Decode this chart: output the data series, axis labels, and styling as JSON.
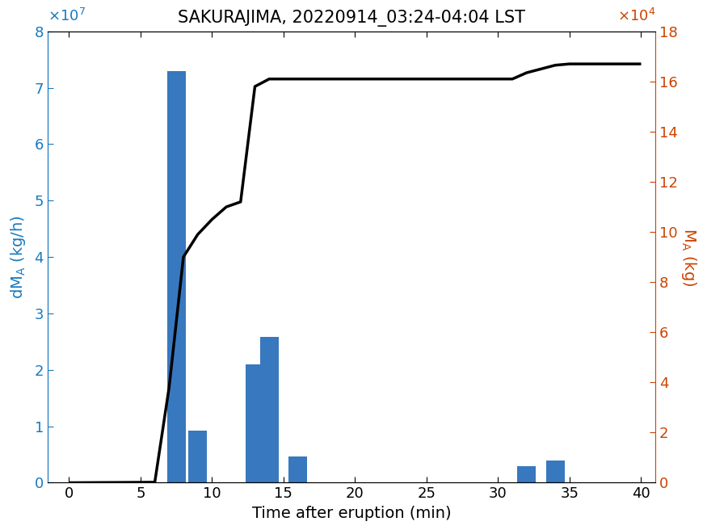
{
  "title": "SAKURAJIMA, 20220914_03:24-04:04 LST",
  "xlabel": "Time after eruption (min)",
  "bar_positions": [
    7.5,
    9,
    13,
    14,
    16,
    32,
    34
  ],
  "bar_heights": [
    73000000.0,
    9200000.0,
    21000000.0,
    25800000.0,
    4600000.0,
    3000000.0,
    4000000.0
  ],
  "bar_width": 1.3,
  "bar_color": "#3878be",
  "line_x": [
    0,
    6.0,
    7.0,
    8.0,
    9.0,
    10.0,
    11.0,
    12.0,
    13.0,
    14.0,
    15.0,
    16.0,
    17.0,
    18.0,
    25.0,
    30.0,
    31.0,
    32.0,
    33.0,
    34.0,
    35.0,
    38.0,
    40.0
  ],
  "line_y": [
    0,
    200.0,
    38000.0,
    90000.0,
    99000.0,
    105000.0,
    110000.0,
    112000.0,
    158000.0,
    161000.0,
    161000.0,
    161000.0,
    161000.0,
    161000.0,
    161000.0,
    161000.0,
    161000.0,
    163500.0,
    165000.0,
    166500.0,
    167000.0,
    167000.0,
    167000.0
  ],
  "line_color": "#000000",
  "line_width": 2.5,
  "xlim": [
    -1.5,
    41
  ],
  "ylim_left": [
    0,
    80000000.0
  ],
  "ylim_right": [
    0,
    180000.0
  ],
  "xticks": [
    0,
    5,
    10,
    15,
    20,
    25,
    30,
    35,
    40
  ],
  "yticks_left": [
    0,
    10000000.0,
    20000000.0,
    30000000.0,
    40000000.0,
    50000000.0,
    60000000.0,
    70000000.0,
    80000000.0
  ],
  "yticks_left_labels": [
    "0",
    "1",
    "2",
    "3",
    "4",
    "5",
    "6",
    "7",
    "8"
  ],
  "yticks_right": [
    0,
    20000.0,
    40000.0,
    60000.0,
    80000.0,
    100000.0,
    120000.0,
    140000.0,
    160000.0,
    180000.0
  ],
  "yticks_right_labels": [
    "0",
    "2",
    "4",
    "6",
    "8",
    "10",
    "12",
    "14",
    "16",
    "18"
  ],
  "left_color": "#1a7abf",
  "right_color": "#cc4400",
  "title_fontsize": 15,
  "label_fontsize": 14,
  "tick_fontsize": 13,
  "exponent_fontsize": 13
}
